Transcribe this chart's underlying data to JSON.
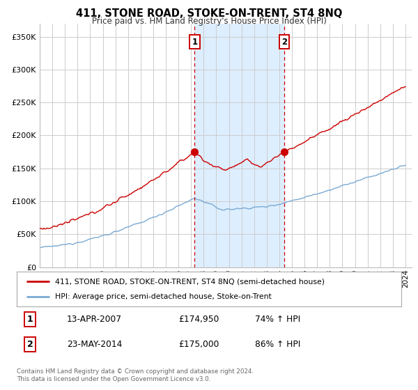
{
  "title": "411, STONE ROAD, STOKE-ON-TRENT, ST4 8NQ",
  "subtitle": "Price paid vs. HM Land Registry's House Price Index (HPI)",
  "ylabel_ticks": [
    "£0",
    "£50K",
    "£100K",
    "£150K",
    "£200K",
    "£250K",
    "£300K",
    "£350K"
  ],
  "ytick_values": [
    0,
    50000,
    100000,
    150000,
    200000,
    250000,
    300000,
    350000
  ],
  "ylim": [
    0,
    370000
  ],
  "xlim_start": 1995.0,
  "xlim_end": 2024.5,
  "hpi_color": "#7aaad4",
  "price_color": "#cc0000",
  "shaded_color": "#ddeeff",
  "marker1_date_x": 2007.28,
  "marker1_price": 174950,
  "marker2_date_x": 2014.39,
  "marker2_price": 175000,
  "legend_line1": "411, STONE ROAD, STOKE-ON-TRENT, ST4 8NQ (semi-detached house)",
  "legend_line2": "HPI: Average price, semi-detached house, Stoke-on-Trent",
  "table_row1_num": "1",
  "table_row1_date": "13-APR-2007",
  "table_row1_price": "£174,950",
  "table_row1_hpi": "74% ↑ HPI",
  "table_row2_num": "2",
  "table_row2_date": "23-MAY-2014",
  "table_row2_price": "£175,000",
  "table_row2_hpi": "86% ↑ HPI",
  "footer": "Contains HM Land Registry data © Crown copyright and database right 2024.\nThis data is licensed under the Open Government Licence v3.0.",
  "background_color": "#ffffff",
  "grid_color": "#cccccc"
}
